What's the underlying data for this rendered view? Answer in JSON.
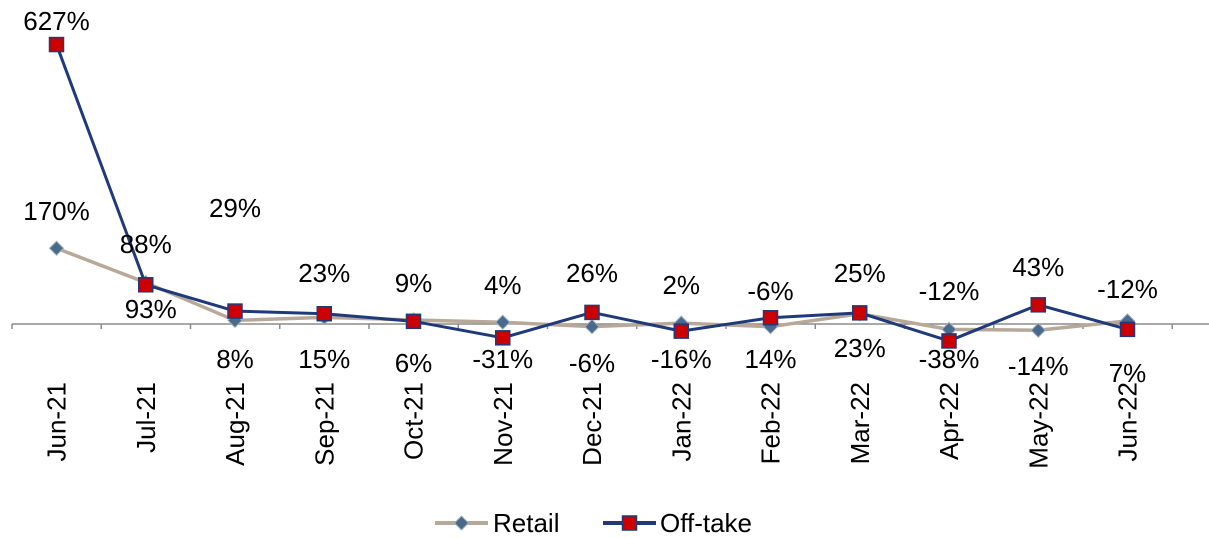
{
  "chart_data": {
    "type": "line",
    "categories": [
      "Jun-21",
      "Jul-21",
      "Aug-21",
      "Sep-21",
      "Oct-21",
      "Nov-21",
      "Dec-21",
      "Jan-22",
      "Feb-22",
      "Mar-22",
      "Apr-22",
      "May-22",
      "Jun-22"
    ],
    "series": [
      {
        "name": "Retail",
        "values": [
          170,
          93,
          8,
          15,
          9,
          4,
          -6,
          2,
          -6,
          23,
          -12,
          -14,
          7
        ],
        "labels": [
          "170%",
          "93%",
          "8%",
          "15%",
          "9%",
          "4%",
          "-6%",
          "2%",
          "-6%",
          "23%",
          "-12%",
          "-14%",
          "7%"
        ],
        "color": "#B7A898",
        "marker_color": "#4A6A8A",
        "marker": "diamond"
      },
      {
        "name": "Off-take",
        "values": [
          627,
          88,
          29,
          23,
          6,
          -31,
          26,
          -16,
          14,
          25,
          -38,
          43,
          -12
        ],
        "labels": [
          "627%",
          "88%",
          "29%",
          "23%",
          "6%",
          "-31%",
          "26%",
          "-16%",
          "14%",
          "25%",
          "-38%",
          "43%",
          "-12%"
        ],
        "color": "#1F3A7A",
        "marker_color": "#CC0000",
        "marker": "square"
      }
    ],
    "title": "",
    "xlabel": "",
    "ylabel": "",
    "grid": false,
    "legend": "bottom"
  }
}
